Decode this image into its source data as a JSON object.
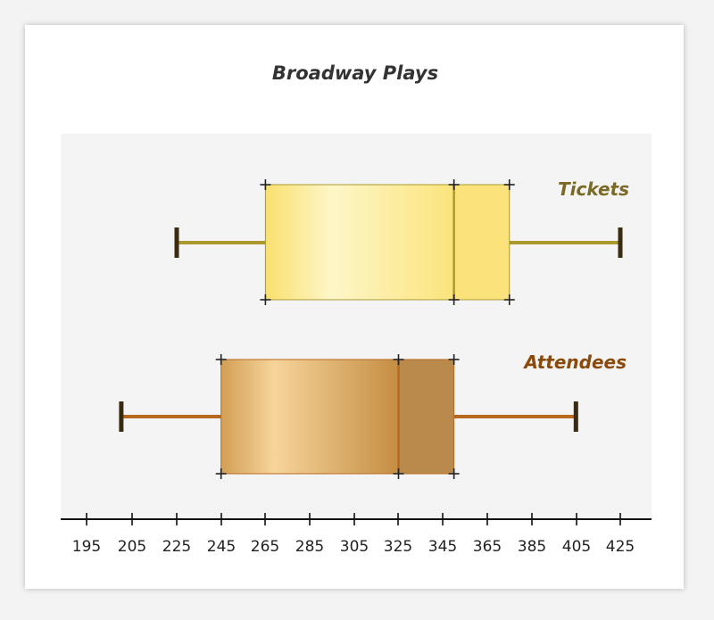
{
  "chart_data": {
    "type": "boxplot",
    "title": "Broadway Plays",
    "xlabel": "",
    "ylabel": "",
    "x_ticks": [
      195,
      205,
      225,
      245,
      265,
      285,
      305,
      325,
      345,
      365,
      385,
      405,
      425
    ],
    "xlim": [
      190,
      430
    ],
    "series": [
      {
        "name": "Tickets",
        "min": 225,
        "q1": 265,
        "median": 350,
        "q3": 375,
        "max": 425,
        "color": "#fbe27a",
        "label_color": "#7b6a26",
        "whisker_color": "#a99a2e"
      },
      {
        "name": "Attendees",
        "min": 200,
        "q1": 245,
        "median": 325,
        "q3": 350,
        "max": 405,
        "color": "#d9a85a",
        "label_color": "#8a4a0c",
        "whisker_color": "#b9691e"
      }
    ]
  }
}
